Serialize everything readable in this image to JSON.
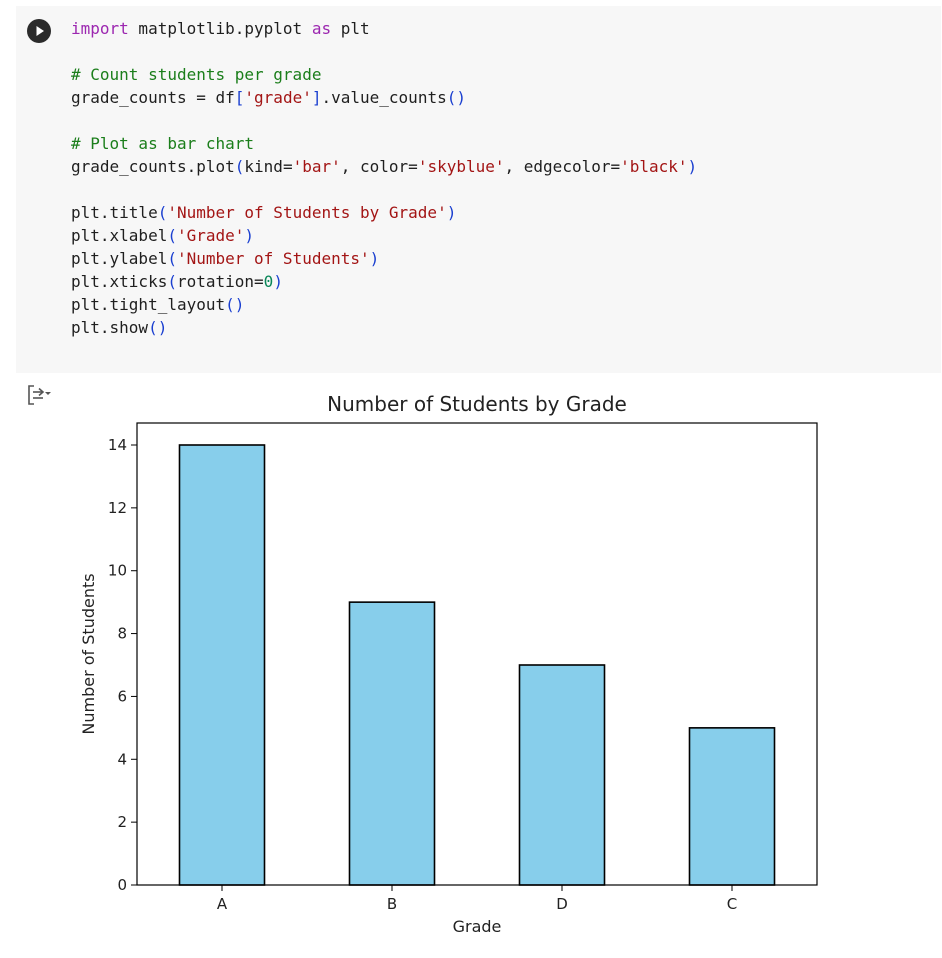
{
  "code_cell": {
    "lines": [
      [
        {
          "t": "kw",
          "v": "import"
        },
        {
          "t": "",
          "v": " matplotlib.pyplot "
        },
        {
          "t": "kw",
          "v": "as"
        },
        {
          "t": "",
          "v": " plt"
        }
      ],
      [],
      [
        {
          "t": "cm",
          "v": "# Count students per grade"
        }
      ],
      [
        {
          "t": "",
          "v": "grade_counts = df"
        },
        {
          "t": "pn",
          "v": "["
        },
        {
          "t": "st",
          "v": "'grade'"
        },
        {
          "t": "pn",
          "v": "]"
        },
        {
          "t": "",
          "v": ".value_counts"
        },
        {
          "t": "pn",
          "v": "()"
        }
      ],
      [],
      [
        {
          "t": "cm",
          "v": "# Plot as bar chart"
        }
      ],
      [
        {
          "t": "",
          "v": "grade_counts.plot"
        },
        {
          "t": "pn",
          "v": "("
        },
        {
          "t": "",
          "v": "kind="
        },
        {
          "t": "st",
          "v": "'bar'"
        },
        {
          "t": "",
          "v": ", color="
        },
        {
          "t": "st",
          "v": "'skyblue'"
        },
        {
          "t": "",
          "v": ", edgecolor="
        },
        {
          "t": "st",
          "v": "'black'"
        },
        {
          "t": "pn",
          "v": ")"
        }
      ],
      [],
      [
        {
          "t": "",
          "v": "plt.title"
        },
        {
          "t": "pn",
          "v": "("
        },
        {
          "t": "st",
          "v": "'Number of Students by Grade'"
        },
        {
          "t": "pn",
          "v": ")"
        }
      ],
      [
        {
          "t": "",
          "v": "plt.xlabel"
        },
        {
          "t": "pn",
          "v": "("
        },
        {
          "t": "st",
          "v": "'Grade'"
        },
        {
          "t": "pn",
          "v": ")"
        }
      ],
      [
        {
          "t": "",
          "v": "plt.ylabel"
        },
        {
          "t": "pn",
          "v": "("
        },
        {
          "t": "st",
          "v": "'Number of Students'"
        },
        {
          "t": "pn",
          "v": ")"
        }
      ],
      [
        {
          "t": "",
          "v": "plt.xticks"
        },
        {
          "t": "pn",
          "v": "("
        },
        {
          "t": "",
          "v": "rotation="
        },
        {
          "t": "nm",
          "v": "0"
        },
        {
          "t": "pn",
          "v": ")"
        }
      ],
      [
        {
          "t": "",
          "v": "plt.tight_layout"
        },
        {
          "t": "pn",
          "v": "()"
        }
      ],
      [
        {
          "t": "",
          "v": "plt.show"
        },
        {
          "t": "pn",
          "v": "()"
        }
      ]
    ]
  },
  "icons": {
    "run": "play-circle-icon",
    "output_toggle": "output-collapse-icon"
  },
  "chart_data": {
    "type": "bar",
    "title": "Number of Students by Grade",
    "xlabel": "Grade",
    "ylabel": "Number of Students",
    "categories": [
      "A",
      "B",
      "D",
      "C"
    ],
    "values": [
      14,
      9,
      7,
      5
    ],
    "ylim": [
      0,
      14.7
    ],
    "yticks": [
      0,
      2,
      4,
      6,
      8,
      10,
      12,
      14
    ],
    "bar_color": "#87ceeb",
    "edge_color": "#000000",
    "grid": false,
    "legend": "none"
  }
}
